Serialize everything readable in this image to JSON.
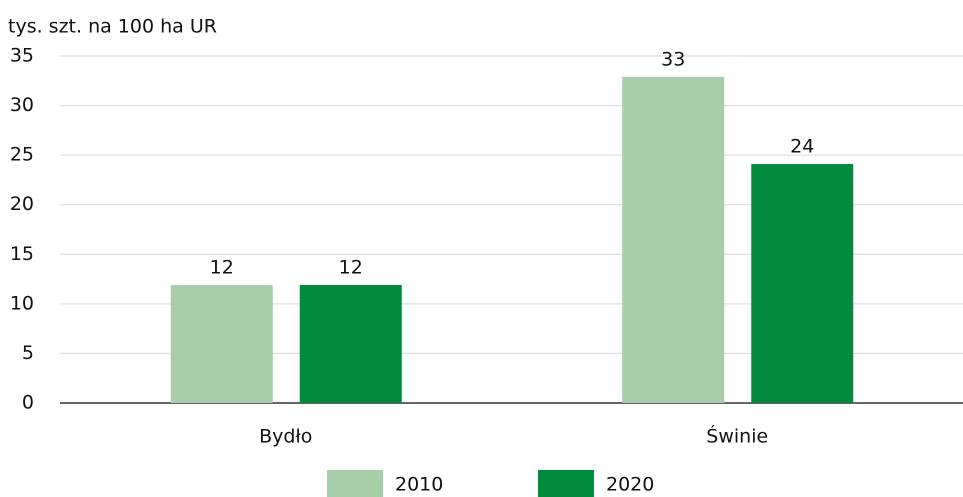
{
  "chart_data": {
    "type": "bar",
    "y_axis_label": "tys. szt. na 100 ha UR",
    "categories": [
      "Bydło",
      "Świnie"
    ],
    "series": [
      {
        "name": "2010",
        "color": "#a7cea8",
        "values": [
          11.9,
          32.9
        ],
        "value_labels": [
          "12",
          "33"
        ]
      },
      {
        "name": "2020",
        "color": "#008a3e",
        "values": [
          11.9,
          24.1
        ],
        "value_labels": [
          "12",
          "24"
        ]
      }
    ],
    "ylim": [
      0,
      35
    ],
    "yticks": [
      0,
      5,
      10,
      15,
      20,
      25,
      30,
      35
    ],
    "grid": true,
    "legend": "bottom"
  }
}
